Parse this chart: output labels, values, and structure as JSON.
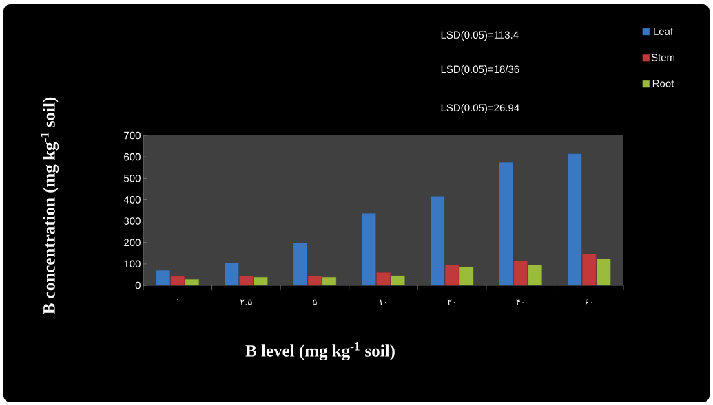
{
  "chart_data": {
    "type": "bar",
    "xlabel": "B level (mg kg$^{-1}$ soil)",
    "ylabel": "B concentration (mg kg$^{-1}$ soil)",
    "categories": [
      "۰",
      "۲.۵",
      "۵",
      "۱۰",
      "۲۰",
      "۴۰",
      "۶۰"
    ],
    "series": [
      {
        "name": "Leaf",
        "color": "#3a78c3",
        "values": [
          70,
          105,
          198,
          336,
          416,
          574,
          614
        ]
      },
      {
        "name": "Stem",
        "color": "#c0393b",
        "values": [
          42,
          44,
          44,
          60,
          95,
          115,
          147
        ]
      },
      {
        "name": "Root",
        "color": "#9bbb3b",
        "values": [
          28,
          38,
          38,
          45,
          86,
          95,
          124
        ]
      }
    ],
    "ylim": [
      0,
      700
    ],
    "yticks": [
      0,
      100,
      200,
      300,
      400,
      500,
      600,
      700
    ],
    "annotations": [
      "LSD(0.05)=113.4",
      "LSD(0.05)=18/36",
      "LSD(0.05)=26.94"
    ],
    "legend": "top right"
  }
}
